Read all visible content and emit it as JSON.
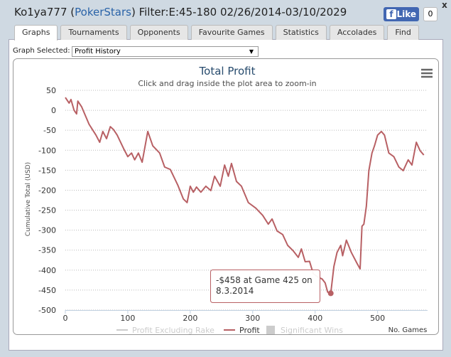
{
  "header": {
    "title_parts": [
      "Ko1ya777 (",
      "PokerStars",
      ") Filter:E:45-180 02/26/2014-03/10/2029"
    ],
    "like": "Like",
    "like_count": "0",
    "close": "x"
  },
  "tabs": [
    "Graphs",
    "Tournaments",
    "Opponents",
    "Favourite Games",
    "Statistics",
    "Accolades",
    "Find"
  ],
  "graph_selector": {
    "label": "Graph Selected:",
    "value": "Profit History"
  },
  "chart_data": {
    "type": "line",
    "title": "Total Profit",
    "subtitle": "Click and drag inside the plot area to zoom-in",
    "ylabel": "Cumulative Total (USD)",
    "xlabel": "No. Games",
    "xlim": [
      0,
      580
    ],
    "xticks": [
      0,
      100,
      200,
      300,
      400,
      500
    ],
    "ylim": [
      -500,
      50
    ],
    "yticks": [
      50,
      0,
      -50,
      -100,
      -150,
      -200,
      -250,
      -300,
      -350,
      -400,
      -450,
      -500
    ],
    "grid": true,
    "series": [
      {
        "name": "Profit",
        "color": "#b86064",
        "x": [
          0,
          6,
          9,
          14,
          18,
          20,
          26,
          38,
          49,
          55,
          60,
          66,
          72,
          77,
          83,
          94,
          100,
          106,
          111,
          117,
          123,
          132,
          140,
          151,
          159,
          168,
          180,
          189,
          195,
          200,
          205,
          210,
          217,
          225,
          233,
          239,
          248,
          255,
          261,
          266,
          274,
          282,
          293,
          305,
          316,
          325,
          331,
          339,
          348,
          356,
          365,
          373,
          378,
          384,
          391,
          397,
          405,
          411,
          416,
          420,
          425,
          430,
          435,
          441,
          444,
          450,
          458,
          467,
          472,
          475,
          478,
          482,
          486,
          491,
          495,
          500,
          506,
          511,
          518,
          526,
          534,
          541,
          549,
          555,
          562,
          568,
          574
        ],
        "values": [
          32,
          18,
          27,
          0,
          -9,
          23,
          9,
          -35,
          -62,
          -80,
          -53,
          -71,
          -41,
          -48,
          -62,
          -98,
          -116,
          -107,
          -124,
          -107,
          -130,
          -53,
          -89,
          -107,
          -142,
          -148,
          -187,
          -222,
          -231,
          -190,
          -205,
          -192,
          -205,
          -190,
          -201,
          -165,
          -190,
          -137,
          -165,
          -133,
          -178,
          -190,
          -231,
          -245,
          -263,
          -285,
          -272,
          -302,
          -311,
          -338,
          -352,
          -368,
          -347,
          -379,
          -378,
          -409,
          -418,
          -422,
          -432,
          -455,
          -458,
          -391,
          -356,
          -338,
          -364,
          -325,
          -356,
          -383,
          -397,
          -290,
          -285,
          -240,
          -151,
          -107,
          -89,
          -62,
          -53,
          -62,
          -107,
          -116,
          -142,
          -151,
          -124,
          -137,
          -80,
          -101,
          -112
        ]
      }
    ],
    "inactive_legend": [
      {
        "name": "Profit Excluding Rake",
        "symbol": "line",
        "color": "#cccccc"
      },
      {
        "name": "Significant Wins",
        "symbol": "box",
        "color": "#cccccc"
      }
    ],
    "tooltip": {
      "lines": [
        "-$458 at Game 425 on",
        "8.3.2014"
      ],
      "x": 425,
      "y": -458
    }
  }
}
